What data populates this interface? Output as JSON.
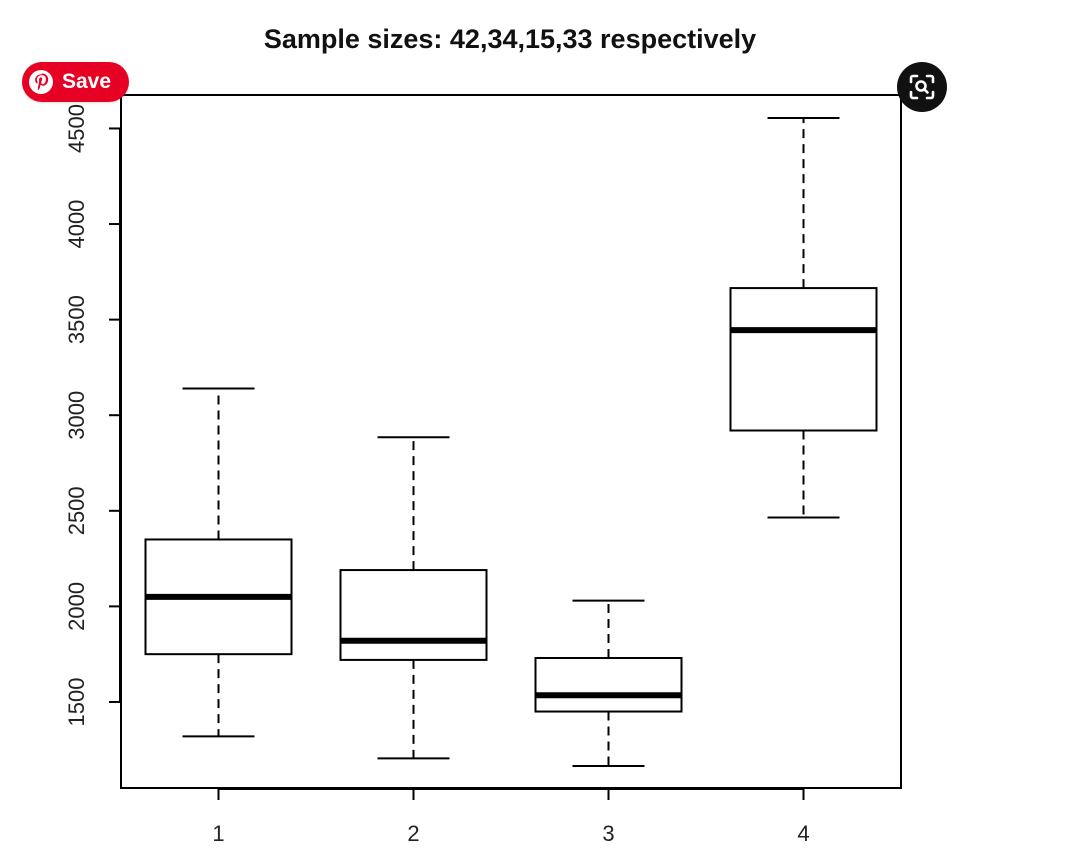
{
  "save_button": {
    "label": "Save",
    "icon": "pinterest-icon",
    "color": "#e60023"
  },
  "lens_button": {
    "icon": "visual-search-icon",
    "color": "#111111"
  },
  "chart_data": {
    "type": "boxplot",
    "title": "Sample sizes: 42,34,15,33 respectively",
    "xlabel": "",
    "ylabel": "",
    "categories": [
      "1",
      "2",
      "3",
      "4"
    ],
    "ylim": [
      1050,
      4675
    ],
    "y_ticks": [
      1500,
      2000,
      2500,
      3000,
      3500,
      4000,
      4500
    ],
    "grid": false,
    "boxes": [
      {
        "category": "1",
        "whisker_low": 1320,
        "q1": 1750,
        "median": 2050,
        "q3": 2350,
        "whisker_high": 3140
      },
      {
        "category": "2",
        "whisker_low": 1205,
        "q1": 1720,
        "median": 1820,
        "q3": 2190,
        "whisker_high": 2885
      },
      {
        "category": "3",
        "whisker_low": 1165,
        "q1": 1450,
        "median": 1535,
        "q3": 1730,
        "whisker_high": 2030
      },
      {
        "category": "4",
        "whisker_low": 2465,
        "q1": 2920,
        "median": 3445,
        "q3": 3665,
        "whisker_high": 4555
      }
    ]
  }
}
